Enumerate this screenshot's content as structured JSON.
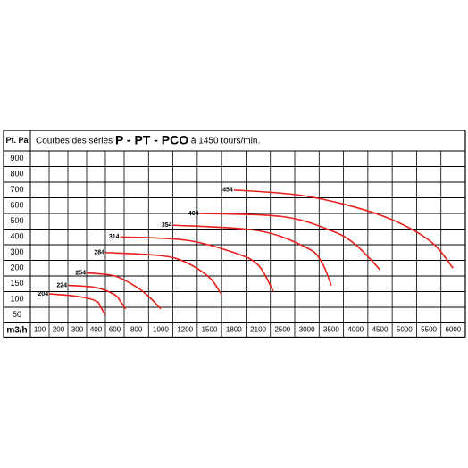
{
  "chart_data": {
    "type": "line",
    "title": {
      "prefix": "Courbes des séries",
      "bold": "P - PT - PCO",
      "suffix": "à 1450 tours/min."
    },
    "ylabel": "Pt. Pa",
    "xlabel": "m3/h",
    "yticks": [
      900,
      800,
      700,
      600,
      500,
      400,
      300,
      200,
      150,
      100,
      50
    ],
    "xticks": [
      100,
      200,
      300,
      400,
      600,
      800,
      1000,
      1200,
      1500,
      1800,
      2100,
      2500,
      3000,
      3500,
      4000,
      4500,
      5000,
      5500,
      6000
    ],
    "color": "#e8201a",
    "series": [
      {
        "name": "204",
        "x": [
          150,
          300,
          400,
          450,
          500
        ],
        "values": [
          118,
          110,
          95,
          75,
          50
        ]
      },
      {
        "name": "224",
        "x": [
          250,
          400,
          600,
          650,
          700
        ],
        "values": [
          145,
          138,
          115,
          95,
          70
        ]
      },
      {
        "name": "254",
        "x": [
          350,
          600,
          800,
          900,
          1000
        ],
        "values": [
          185,
          175,
          140,
          110,
          70
        ]
      },
      {
        "name": "284",
        "x": [
          500,
          1000,
          1200,
          1500,
          1650
        ],
        "values": [
          300,
          280,
          240,
          170,
          115
        ]
      },
      {
        "name": "314",
        "x": [
          650,
          1200,
          1800,
          2100,
          2350
        ],
        "values": [
          400,
          380,
          300,
          220,
          125
        ]
      },
      {
        "name": "354",
        "x": [
          1100,
          2100,
          3000,
          3300,
          3500
        ],
        "values": [
          475,
          440,
          330,
          240,
          145
        ]
      },
      {
        "name": "404",
        "x": [
          1380,
          2500,
          3500,
          4000,
          4500
        ],
        "values": [
          550,
          530,
          440,
          350,
          195
        ]
      },
      {
        "name": "454",
        "x": [
          1800,
          3000,
          4500,
          5500,
          6000
        ],
        "values": [
          700,
          660,
          540,
          380,
          200
        ]
      }
    ]
  }
}
